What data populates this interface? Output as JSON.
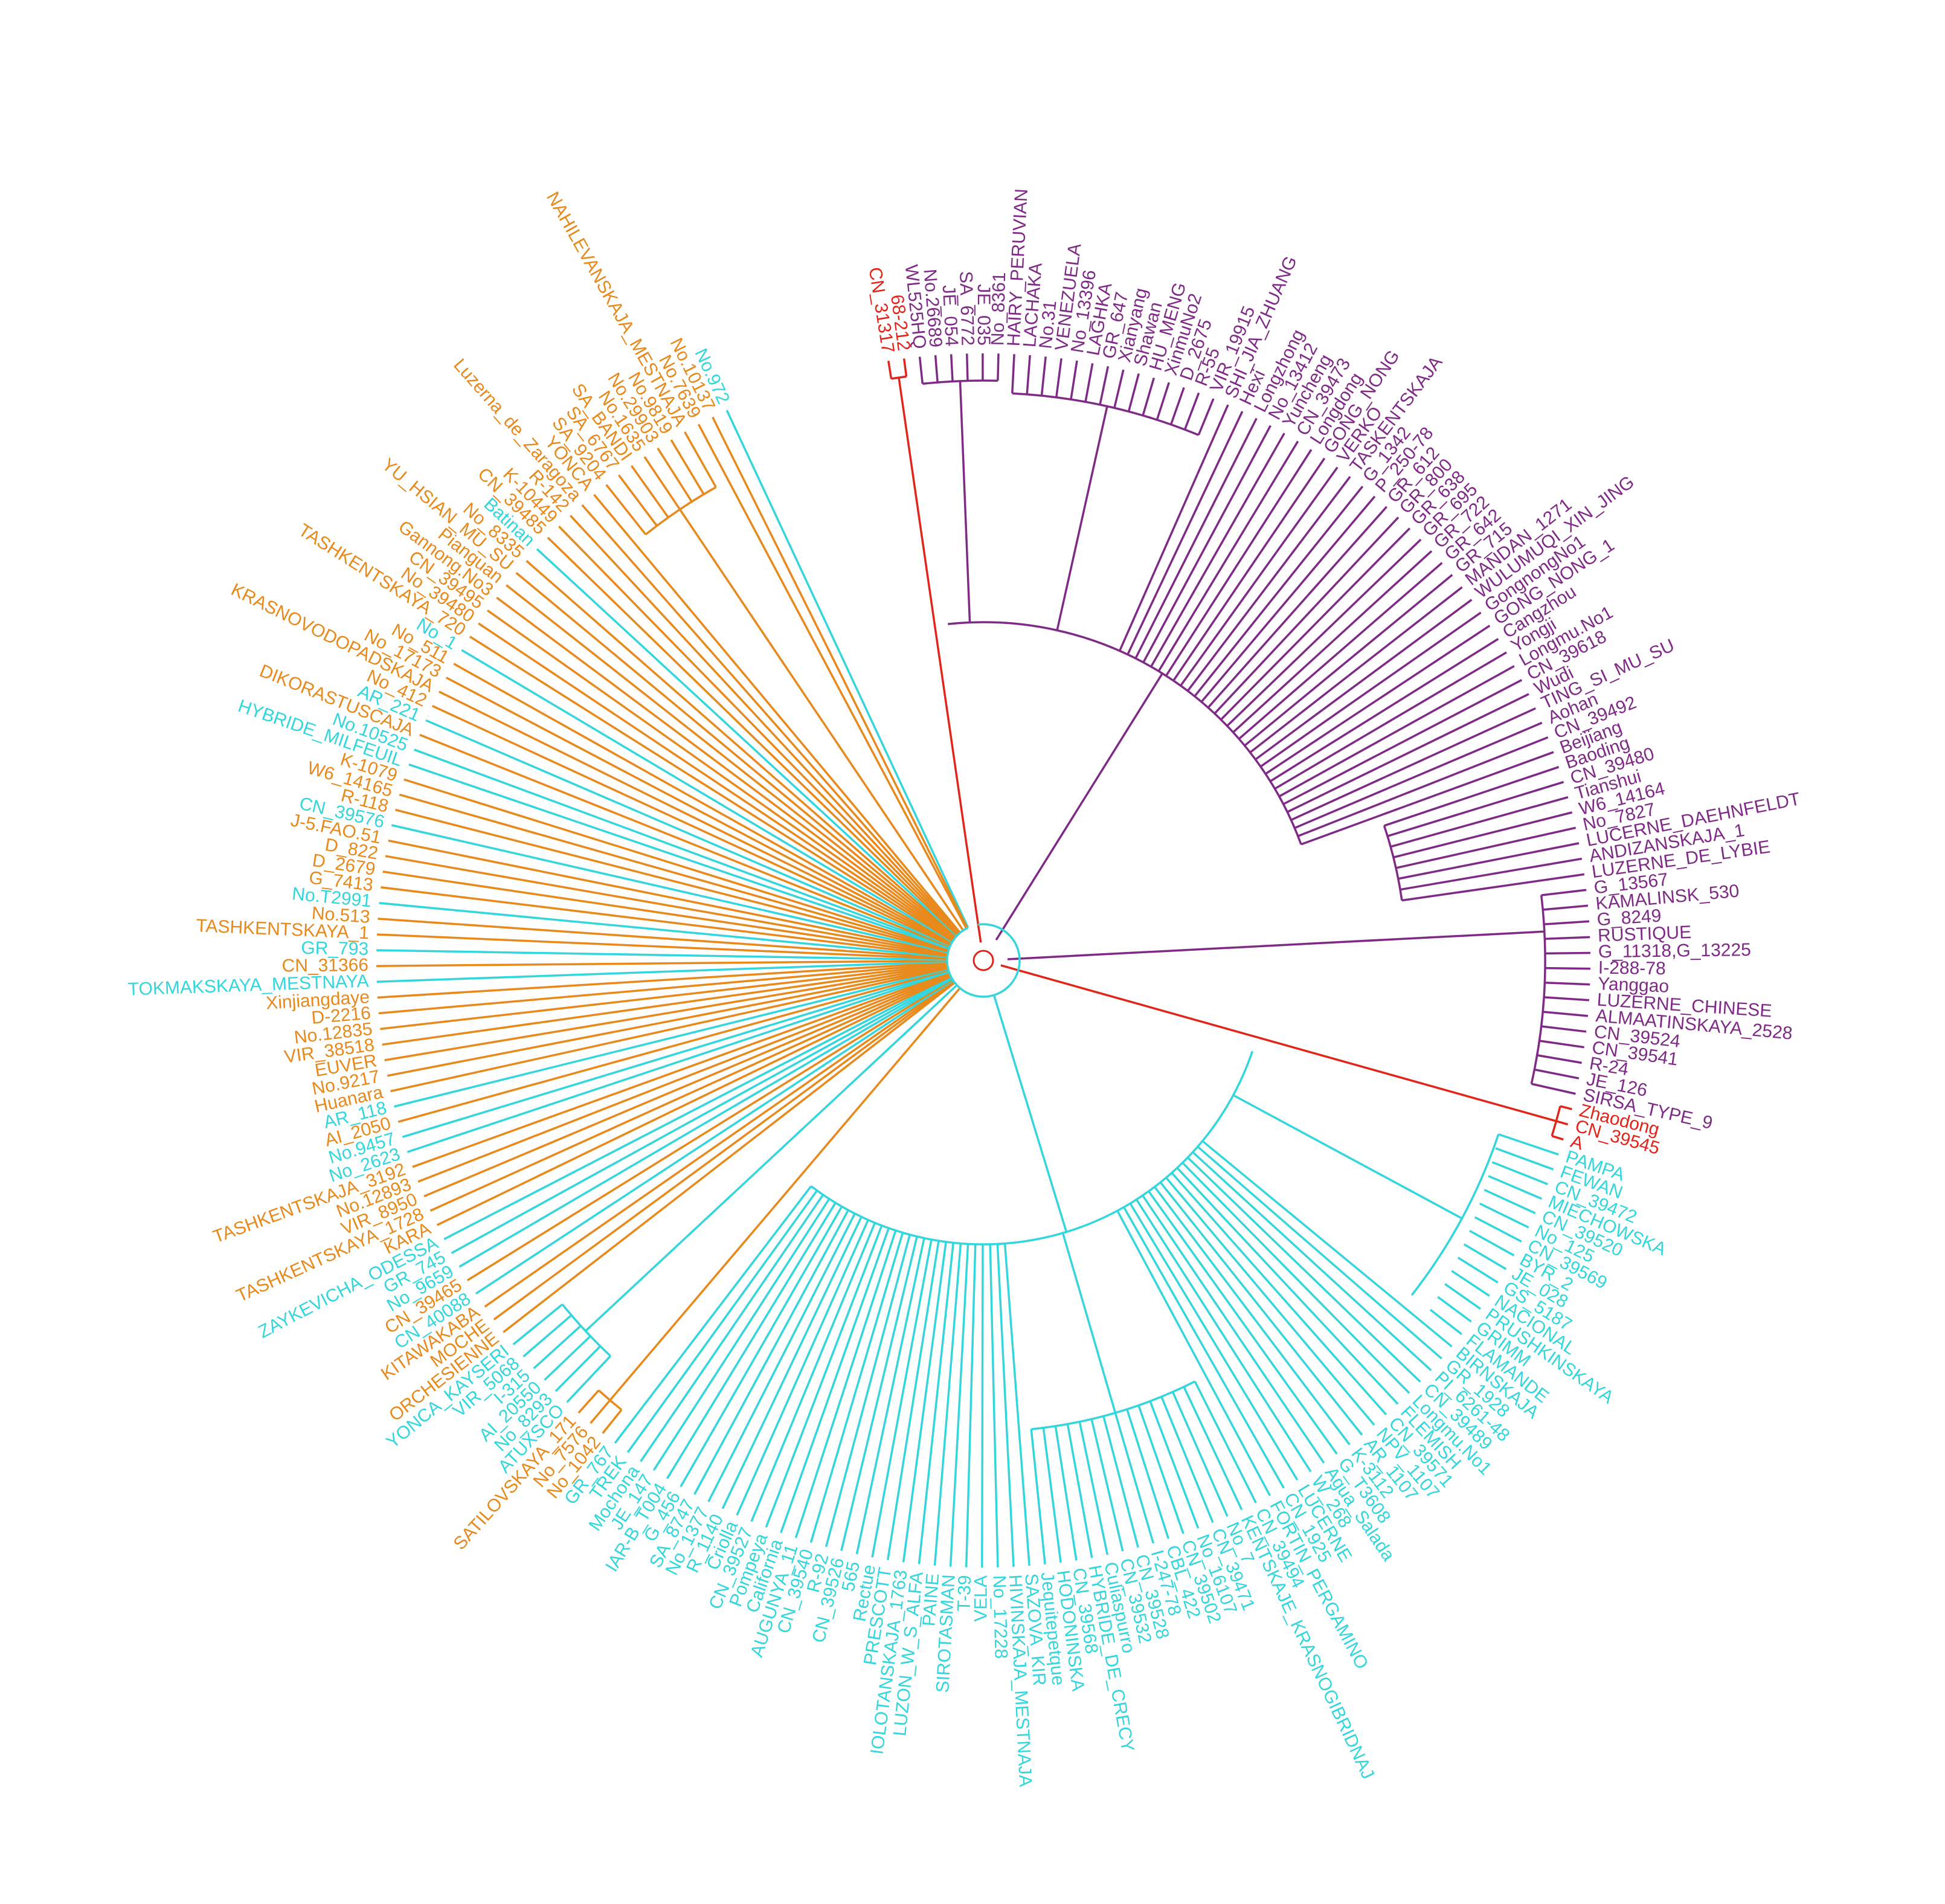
{
  "figure": {
    "colors": {
      "orange": "#e8891c",
      "cyan": "#33d6dc",
      "purple": "#7f2a86",
      "red": "#e1251b"
    },
    "clusters": [
      {
        "id": "red-top",
        "color": "red",
        "labels": [
          "CN_31317",
          "68-212"
        ]
      },
      {
        "id": "purple-main",
        "color": "purple",
        "labels": [
          "WL525HQ",
          "No.26689",
          "JE_054",
          "SA_6772",
          "JE_035",
          "No_8361",
          "HAIRY_PERUVIAN",
          "LACHAKA",
          "No.31",
          "VENEZUELA",
          "No_13396",
          "LAGHKA",
          "GR_647",
          "Xianyang",
          "Shawan",
          "HU_MENG",
          "XinmuNo2",
          "D_2675",
          "R-55",
          "VIR_19915",
          "SHI_JIA_ZHUANG",
          "Hexi",
          "Longzhong",
          "No_13412",
          "Yuncheng",
          "CN_39473",
          "Longdong",
          "GONG_NONG",
          "VERKO",
          "TASKENTSKAJA",
          "G_1342",
          "P_250-78",
          "GR_612",
          "GR_800",
          "GR_638",
          "GR_695",
          "GR_722",
          "GR_642",
          "GR_715",
          "MANDAN_1271",
          "WULUMUQI_XIN_JING",
          "GongnongNo1",
          "GONG_NONG_1",
          "Cangzhou",
          "Yongji",
          "Longmu.No1",
          "CN_39618",
          "Wudi",
          "TING_SI_MU_SU",
          "Aohan",
          "CN_39492",
          "Beijiang",
          "Baoding",
          "CN_39480",
          "Tianshui",
          "W6_14164",
          "No_7827",
          "LUCERNE_DAEHNFELDT",
          "ANDIZANSKAJA_1",
          "LUZERNE_DE_LYBIE",
          "G_13567",
          "KAMALINSK_530",
          "G_8249",
          "RUSTIQUE",
          "G_11318,G_13225",
          "I-288-78",
          "Yanggao",
          "LUZERNE_CHINESE",
          "ALMAATINSKAYA_2528",
          "CN_39524",
          "CN_39541",
          "R-24",
          "JE_126",
          "SIRSA_TYPE_9"
        ]
      },
      {
        "id": "red-right",
        "color": "red",
        "labels": [
          "Zhaodong",
          "CN_39545",
          "A"
        ]
      },
      {
        "id": "cyan-main",
        "color": "cyan",
        "labels": [
          "PAMPA",
          "FEWAN",
          "CN_39472",
          "MIECHOWSKA",
          "CN_39520",
          "No_125",
          "CN_39569",
          "BYR_2",
          "JE_028",
          "GS_5187",
          "NACIONAL",
          "PRUSHKINSKAYA",
          "GRIMM",
          "FLAMANDE",
          "BIRNSKAJA",
          "GR_1928",
          "PI_6261-48",
          "CN_39489",
          "Longmu.No1",
          "FLEMISH",
          "CN_39571",
          "NPV_1107",
          "AR_1107",
          "K-3112",
          "G_T3608",
          "Agua_Salada",
          "W_268",
          "LUCERNE",
          "CN_1925",
          "FORTIN_PERGAMINO",
          "CN_39494",
          "KENTSKAJE_KRASNOGIBRIDNAJ",
          "No_7",
          "CN_39471",
          "No_16107",
          "CN_39502",
          "CBL_422",
          "I-247-78",
          "CN_39528",
          "CN_39532",
          "Culiaspurro",
          "HYBRIDE_DE_CRECY",
          "CN_39568",
          "HODONINSKA",
          "Jequitepetque",
          "SAZOVA_KIR",
          "HIVINSKAJA_MESTNAJA",
          "No_17228",
          "VELA",
          "T-39",
          "SIROTASMAN",
          "PAINE",
          "LUZON_W_S_ALFA",
          "IOLOTANSKAJA_1763",
          "PRESCOTT",
          "Rectue",
          "565",
          "CN_39526",
          "R-92",
          "CN_39540",
          "AUGUNYA_11",
          "California",
          "Pompeya",
          "CN_39527",
          "Criolla",
          "R_1140",
          "No_1377",
          "SA_8747",
          "G_456",
          "IAR-B_T004",
          "JE_147",
          "Mochona",
          "TREK",
          "GR_767"
        ]
      },
      {
        "id": "orange-bottom",
        "color": "orange",
        "labels": [
          "No_1042",
          "No_7576",
          "SATILOVSKAYA_171"
        ]
      },
      {
        "id": "cyan-bottom-left",
        "color": "cyan",
        "labels": [
          "ATUXSCO",
          "No_8293",
          "AI_20550",
          "I-315",
          "VIR_5068",
          "YONCA_KAYSERI"
        ]
      },
      {
        "id": "orange-bottom-left",
        "color": "orange",
        "labels": [
          "ORCHESIENNE",
          "MOCHE",
          "KITAWAKABA"
        ]
      },
      {
        "id": "cyan-left-1",
        "color": "cyan",
        "labels": [
          "CN_40088"
        ]
      },
      {
        "id": "orange-left-1",
        "color": "orange",
        "labels": [
          "CN_39465"
        ]
      },
      {
        "id": "cyan-left-2",
        "color": "cyan",
        "labels": [
          "No_9659",
          "GR_745",
          "ZAYKEVICHA_ODESSA"
        ]
      },
      {
        "id": "orange-left-2",
        "color": "orange",
        "labels": [
          "KARA",
          "TASHKENTSKAYA_1728",
          "VIR_8950",
          "No.12893",
          "TASHKENTSKAJA_3192"
        ]
      },
      {
        "id": "cyan-left-3",
        "color": "cyan",
        "labels": [
          "No_2623",
          "No.9457"
        ]
      },
      {
        "id": "orange-left-3",
        "color": "orange",
        "labels": [
          "AI_2050"
        ]
      },
      {
        "id": "cyan-left-4",
        "color": "cyan",
        "labels": [
          "AR_118"
        ]
      },
      {
        "id": "orange-left-4",
        "color": "orange",
        "labels": [
          "Huanara",
          "No.9217",
          "EUVER",
          "VIR_38518",
          "No.12835",
          "D-2216",
          "Xinjiangdaye"
        ]
      },
      {
        "id": "cyan-left-5",
        "color": "cyan",
        "labels": [
          "TOKMAKSKAYA_MESTNAYA"
        ]
      },
      {
        "id": "orange-left-5",
        "color": "orange",
        "labels": [
          "CN_31366"
        ]
      },
      {
        "id": "cyan-left-6",
        "color": "cyan",
        "labels": [
          "GR_793"
        ]
      },
      {
        "id": "orange-left-6",
        "color": "orange",
        "labels": [
          "TASHKENTSKAYA_1",
          "No.513"
        ]
      },
      {
        "id": "cyan-left-7",
        "color": "cyan",
        "labels": [
          "No.T2991"
        ]
      },
      {
        "id": "orange-left-7",
        "color": "orange",
        "labels": [
          "G_7413",
          "D_2679",
          "D_822",
          "J-5.FAO.51"
        ]
      },
      {
        "id": "cyan-left-8",
        "color": "cyan",
        "labels": [
          "CN_39576"
        ]
      },
      {
        "id": "orange-left-8",
        "color": "orange",
        "labels": [
          "R-118",
          "W6_14165",
          "K-1079"
        ]
      },
      {
        "id": "cyan-left-9",
        "color": "cyan",
        "labels": [
          "HYBRIDE_MILFEUIL",
          "No.10525"
        ]
      },
      {
        "id": "orange-left-9",
        "color": "orange",
        "labels": [
          "DIKORASTUSCAJA"
        ]
      },
      {
        "id": "cyan-left-10",
        "color": "cyan",
        "labels": [
          "AR_221"
        ]
      },
      {
        "id": "orange-left-10",
        "color": "orange",
        "labels": [
          "No_412",
          "KRASNOVODOPADSKAJA",
          "No_17173",
          "No_511"
        ]
      },
      {
        "id": "cyan-left-11",
        "color": "cyan",
        "labels": [
          "No_1"
        ]
      },
      {
        "id": "orange-left-11",
        "color": "orange",
        "labels": [
          "TASHKENTSKAYA_720",
          "No_39480",
          "CN_39495",
          "Gannong.No3",
          "Pianguan",
          "YU_HSIAN_MU_SU",
          "No_8335"
        ]
      },
      {
        "id": "cyan-left-12",
        "color": "cyan",
        "labels": [
          "Batinan"
        ]
      },
      {
        "id": "orange-top-left",
        "color": "orange",
        "labels": [
          "CN_39485",
          "K-10449",
          "R-142",
          "Luzerna_de_Zaragoza",
          "YONCA",
          "SA_9204",
          "SA_6767",
          "SA_BANDI",
          "No.1635",
          "No.29903",
          "No.9819",
          "NAHILEVANSKAJA_MESTNAJA",
          "No.7639",
          "No.10137"
        ]
      },
      {
        "id": "cyan-top",
        "color": "cyan",
        "labels": [
          "No.972"
        ]
      }
    ]
  }
}
